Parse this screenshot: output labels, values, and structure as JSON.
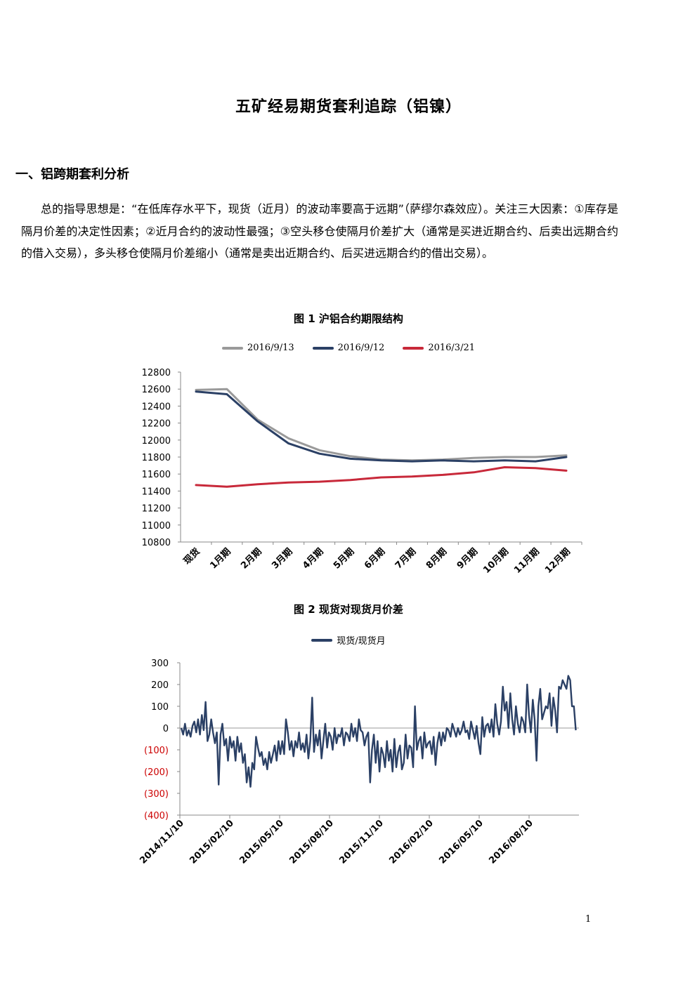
{
  "doc": {
    "title": "五矿经易期货套利追踪（铝镍）",
    "section_heading": "一、铝跨期套利分析",
    "paragraph": "总的指导思想是：“在低库存水平下，现货（近月）的波动率要高于远期”（萨缪尔森效应）。关注三大因素：①库存是隔月价差的决定性因素；②近月合约的波动性最强；③空头移仓使隔月价差扩大（通常是买进近期合约、后卖出远期合约的借入交易），多头移仓使隔月价差缩小（通常是卖出近期合约、后买进远期合约的借出交易）。",
    "page_number": "1"
  },
  "chart_data": [
    {
      "type": "line",
      "title": "图 1  沪铝合约期限结构",
      "categories": [
        "现货",
        "1月期",
        "2月期",
        "3月期",
        "4月期",
        "5月期",
        "6月期",
        "7月期",
        "8月期",
        "9月期",
        "10月期",
        "11月期",
        "12月期"
      ],
      "ylim": [
        10800,
        12800
      ],
      "yticks": [
        10800,
        11000,
        11200,
        11400,
        11600,
        11800,
        12000,
        12200,
        12400,
        12600,
        12800
      ],
      "legend_position": "top",
      "series": [
        {
          "name": "2016/9/13",
          "color": "#9a9a9a",
          "values": [
            12590,
            12600,
            12240,
            12020,
            11880,
            11810,
            11770,
            11760,
            11770,
            11790,
            11800,
            11800,
            11820
          ]
        },
        {
          "name": "2016/9/12",
          "color": "#2b4065",
          "values": [
            12570,
            12540,
            12220,
            11960,
            11840,
            11780,
            11760,
            11750,
            11760,
            11750,
            11760,
            11750,
            11800
          ]
        },
        {
          "name": "2016/3/21",
          "color": "#c8293a",
          "values": [
            11470,
            11450,
            11480,
            11500,
            11510,
            11530,
            11560,
            11570,
            11590,
            11620,
            11680,
            11670,
            11640
          ]
        }
      ]
    },
    {
      "type": "line",
      "title": "图 2  现货对现货月价差",
      "x_tick_labels": [
        "2014/11/10",
        "2015/02/10",
        "2015/05/10",
        "2015/08/10",
        "2015/11/10",
        "2016/02/10",
        "2016/05/10",
        "2016/08/10"
      ],
      "ylim": [
        -400,
        300
      ],
      "yticks": [
        300,
        200,
        100,
        0,
        -100,
        -200,
        -300,
        -400
      ],
      "ytick_labels": [
        "300",
        "200",
        "100",
        "0",
        "(100)",
        "(200)",
        "(300)",
        "(400)"
      ],
      "negative_tick_color": "#cc0000",
      "legend_position": "top",
      "series": [
        {
          "name": "现货/现货月",
          "color": "#2b4065",
          "values": [
            0,
            -30,
            20,
            -35,
            -10,
            -40,
            10,
            30,
            -20,
            40,
            -30,
            60,
            -10,
            120,
            -60,
            -30,
            40,
            -20,
            -70,
            -20,
            -260,
            -30,
            20,
            -80,
            -50,
            -150,
            -40,
            -90,
            -60,
            -150,
            -40,
            -110,
            -70,
            -160,
            -120,
            -250,
            -180,
            -270,
            -160,
            -190,
            -40,
            -90,
            -130,
            -110,
            -170,
            -140,
            -190,
            -110,
            -160,
            -120,
            -80,
            -150,
            -60,
            -120,
            -60,
            -120,
            40,
            -20,
            -100,
            -60,
            -130,
            -60,
            -90,
            -20,
            -100,
            -70,
            -110,
            -30,
            -140,
            -60,
            140,
            -110,
            -30,
            -80,
            -10,
            -140,
            -60,
            20,
            -90,
            -20,
            -40,
            -100,
            0,
            -70,
            -30,
            -40,
            0,
            -80,
            -20,
            -30,
            -60,
            20,
            -40,
            0,
            -60,
            40,
            -10,
            -20,
            -80,
            -40,
            -20,
            -250,
            -100,
            -30,
            -160,
            -60,
            -200,
            -90,
            -120,
            -180,
            -60,
            -150,
            -100,
            -200,
            -50,
            -180,
            -110,
            -80,
            -190,
            -160,
            -30,
            -140,
            -80,
            -90,
            -180,
            100,
            -100,
            -60,
            -40,
            -140,
            -20,
            -90,
            -70,
            -60,
            -120,
            -40,
            -170,
            -70,
            -20,
            -80,
            -20,
            -60,
            0,
            -10,
            -40,
            20,
            -10,
            -40,
            0,
            -30,
            -10,
            30,
            -20,
            -10,
            -50,
            30,
            -10,
            -50,
            10,
            -70,
            -120,
            50,
            -40,
            10,
            20,
            -20,
            40,
            -40,
            110,
            20,
            -30,
            30,
            190,
            80,
            120,
            0,
            160,
            40,
            -30,
            100,
            20,
            -20,
            50,
            30,
            -20,
            200,
            60,
            -20,
            130,
            40,
            -150,
            100,
            180,
            40,
            70,
            100,
            90,
            160,
            10,
            140,
            80,
            -20,
            190,
            180,
            220,
            200,
            180,
            240,
            220,
            100,
            100,
            -10
          ]
        }
      ]
    }
  ]
}
